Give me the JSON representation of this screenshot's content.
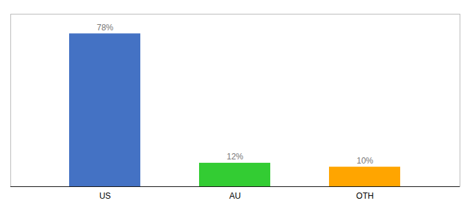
{
  "chart_data": {
    "type": "bar",
    "categories": [
      "US",
      "AU",
      "OTH"
    ],
    "values": [
      78,
      12,
      10
    ],
    "value_labels": [
      "78%",
      "12%",
      "10%"
    ],
    "data_labels": true,
    "colors": [
      "#4472C4",
      "#33CC33",
      "#FFA500"
    ],
    "ylim": [
      0,
      88
    ],
    "tick_labels": "x"
  }
}
